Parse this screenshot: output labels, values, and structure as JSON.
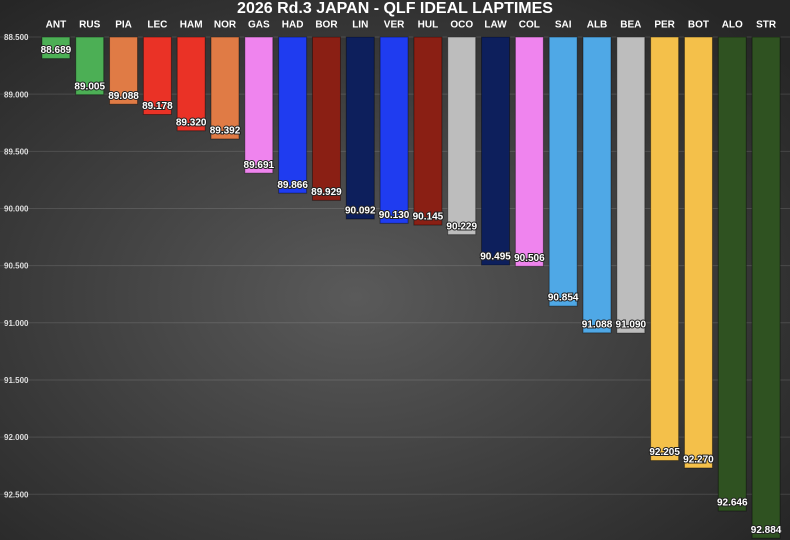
{
  "chart_data": {
    "type": "bar",
    "title": "2026 Rd.3 JAPAN - QLF IDEAL LAPTIMES",
    "categories": [
      "ANT",
      "RUS",
      "PIA",
      "LEC",
      "HAM",
      "NOR",
      "GAS",
      "HAD",
      "BOR",
      "LIN",
      "VER",
      "HUL",
      "OCO",
      "LAW",
      "COL",
      "SAI",
      "ALB",
      "BEA",
      "PER",
      "BOT",
      "ALO",
      "STR"
    ],
    "values": [
      88.689,
      89.005,
      89.088,
      89.178,
      89.32,
      89.392,
      89.691,
      89.866,
      89.929,
      90.092,
      90.13,
      90.145,
      90.229,
      90.495,
      90.506,
      90.854,
      91.088,
      91.09,
      92.205,
      92.27,
      92.646,
      92.884
    ],
    "value_labels": [
      "88.689",
      "89.005",
      "89.088",
      "89.178",
      "89.320",
      "89.392",
      "89.691",
      "89.866",
      "89.929",
      "90.092",
      "90.130",
      "90.145",
      "90.229",
      "90.495",
      "90.506",
      "90.854",
      "91.088",
      "91.090",
      "92.205",
      "92.270",
      "92.646",
      "92.884"
    ],
    "colors": [
      "#4caf55",
      "#4caf55",
      "#e07b45",
      "#ea3226",
      "#ea3226",
      "#e07b45",
      "#ef84ee",
      "#1f3cf0",
      "#8a1f14",
      "#0d1f5c",
      "#1f3cf0",
      "#8a1f14",
      "#bdbdbd",
      "#0d1f5c",
      "#ef84ee",
      "#4fa8e6",
      "#4fa8e6",
      "#bdbdbd",
      "#f4c04a",
      "#f4c04a",
      "#2f5221",
      "#2f5221"
    ],
    "ylim": [
      88.5,
      92.9
    ],
    "yticks": [
      {
        "value": 88.5,
        "label": "88.500"
      },
      {
        "value": 89,
        "label": "89.000"
      },
      {
        "value": 89.5,
        "label": "89.500"
      },
      {
        "value": 90,
        "label": "90.000"
      },
      {
        "value": 90.5,
        "label": "90.500"
      },
      {
        "value": 91,
        "label": "91.000"
      },
      {
        "value": 91.5,
        "label": "91.500"
      },
      {
        "value": 92,
        "label": "92.000"
      },
      {
        "value": 92.5,
        "label": "92.500"
      }
    ],
    "y_inverted": true,
    "grid": true
  }
}
